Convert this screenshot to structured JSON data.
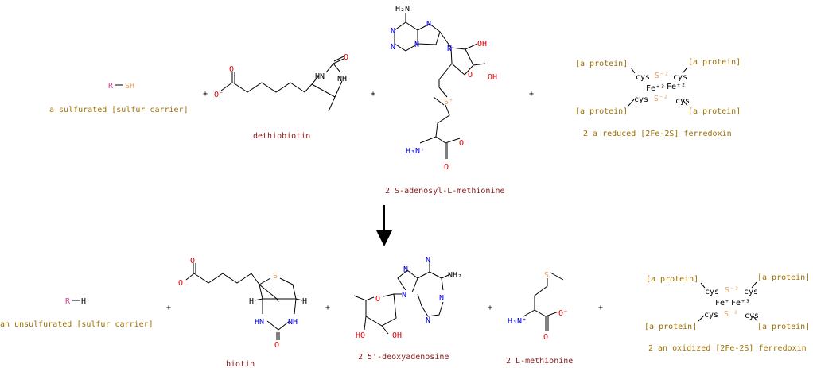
{
  "reactants": [
    {
      "name": "a sulfurated [sulfur carrier]",
      "atoms": {
        "r": "R",
        "sh": "SH"
      }
    },
    {
      "name": "dethiobiotin",
      "atoms": {
        "o1": "O",
        "o2": "O⁻",
        "nh1": "HN",
        "nh2": "NH",
        "o3": "O"
      }
    },
    {
      "name": "2 S-adenosyl-L-methionine",
      "atoms": {
        "nh2": "H₂N",
        "n1": "N",
        "n2": "N",
        "n3": "N",
        "n4": "N",
        "n5": "N",
        "o_ring": "O",
        "oh1": "OH",
        "oh2": "OH",
        "s": "S⁺",
        "h3n": "H₃N⁺",
        "o_minus": "O⁻",
        "o": "O"
      }
    },
    {
      "name": "2 a reduced [2Fe-2S] ferredoxin",
      "atoms": {
        "protein": "[a protein]",
        "cys": "cys",
        "s2": "S⁻²",
        "fe1": "Fe⁺³",
        "fe2": "Fe⁺²"
      }
    }
  ],
  "products": [
    {
      "name": "an unsulfurated [sulfur carrier]",
      "atoms": {
        "r": "R",
        "h": "H"
      }
    },
    {
      "name": "biotin",
      "atoms": {
        "o1": "O",
        "o2": "O⁻",
        "s": "S",
        "h1": "H",
        "h2": "H",
        "nh1": "HN",
        "nh2": "NH",
        "o3": "O"
      }
    },
    {
      "name": "2 5'-deoxyadenosine",
      "atoms": {
        "nh2": "NH₂",
        "n1": "N",
        "n2": "N",
        "n3": "N",
        "n4": "N",
        "n5": "N",
        "o_ring": "O",
        "ho": "HO",
        "oh": "OH"
      }
    },
    {
      "name": "2 L-methionine",
      "atoms": {
        "s": "S",
        "h3n": "H₃N⁺",
        "o_minus": "O⁻",
        "o": "O"
      }
    },
    {
      "name": "2 an oxidized [2Fe-2S] ferredoxin",
      "atoms": {
        "protein": "[a protein]",
        "cys": "cys",
        "s2": "S⁻²",
        "fe1": "Fe⁺",
        "fe2": "Fe⁺³"
      }
    }
  ],
  "plus_sign": "+",
  "arrow_icon": "reaction-arrow-down"
}
